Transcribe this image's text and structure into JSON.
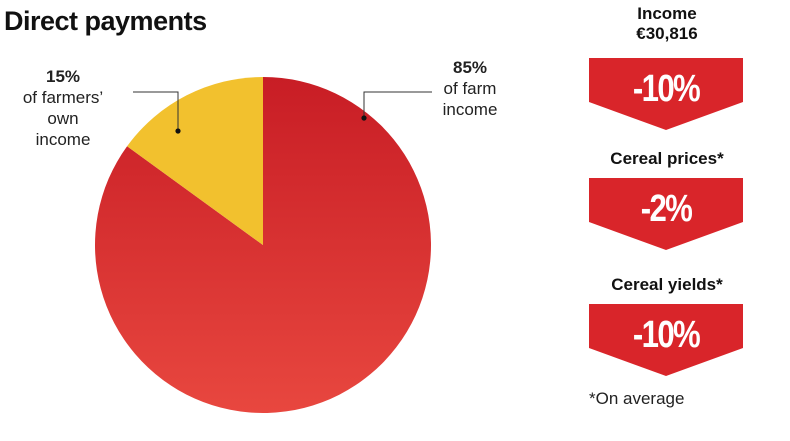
{
  "title": "Direct payments",
  "colors": {
    "farm_income": "#d9252a",
    "farmers_own": "#f2c12e",
    "banner": "#d9252a",
    "text": "#111111"
  },
  "chart_data": {
    "type": "pie",
    "title": "Direct payments",
    "slices": [
      {
        "value": 85,
        "label_pct": "85%",
        "label_desc": "of farm\nincome",
        "color": "#d9252a"
      },
      {
        "value": 15,
        "label_pct": "15%",
        "label_desc": "of farmers’\nown\nincome",
        "color": "#f2c12e"
      }
    ]
  },
  "stats": [
    {
      "heading_line1": "Income",
      "heading_line2": "€30,816",
      "value": "-10%"
    },
    {
      "heading_line1": "Cereal prices*",
      "heading_line2": "",
      "value": "-2%"
    },
    {
      "heading_line1": "Cereal yields*",
      "heading_line2": "",
      "value": "-10%"
    }
  ],
  "footnote": "*On average"
}
